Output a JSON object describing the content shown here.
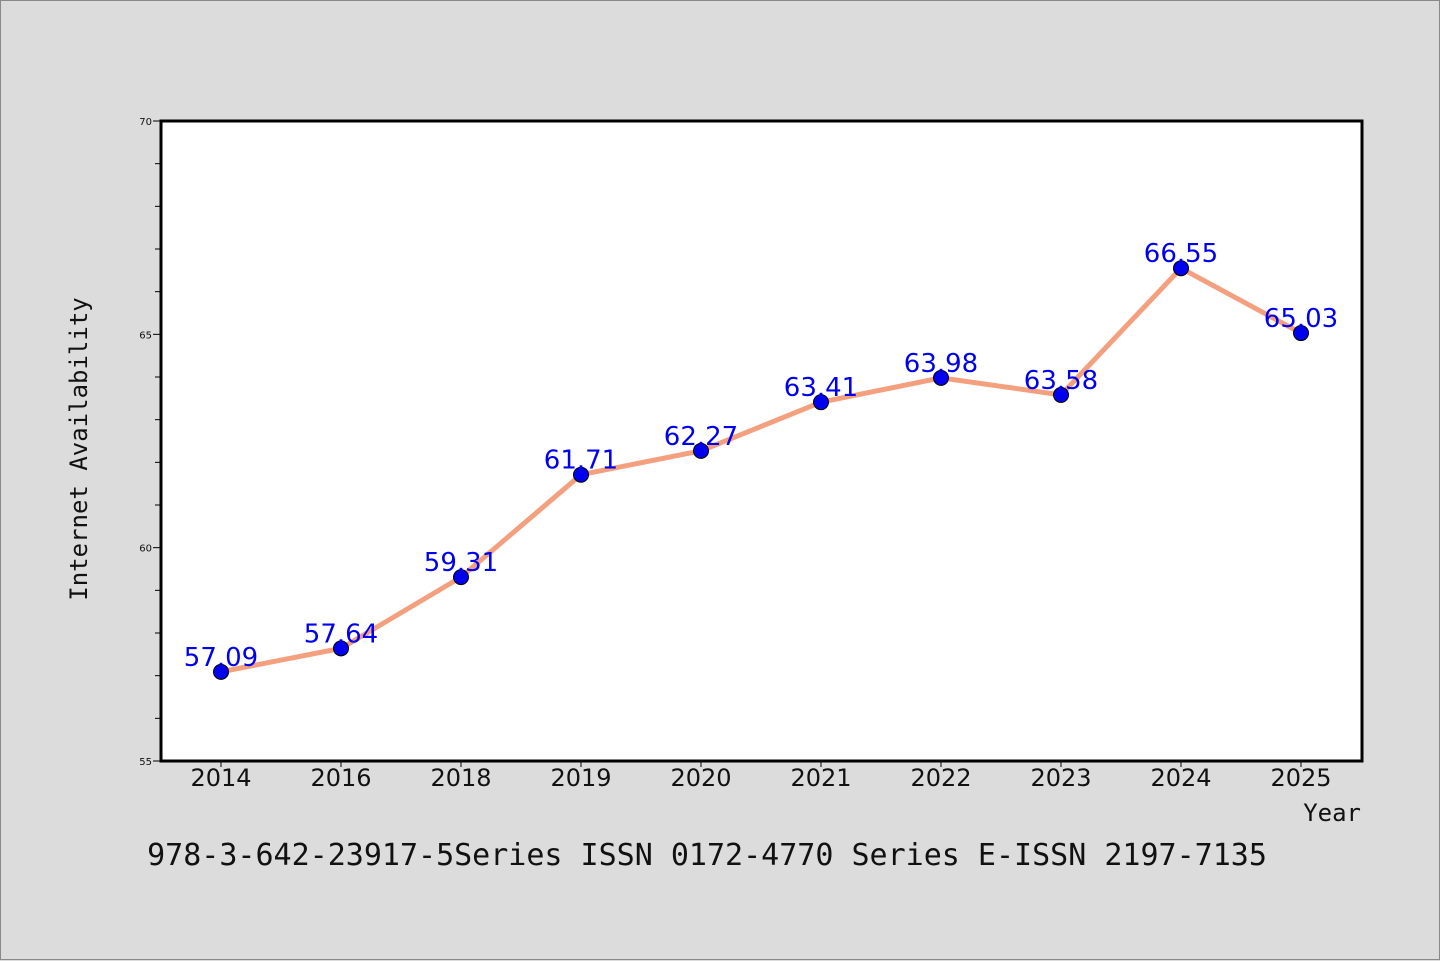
{
  "chart_data": {
    "type": "line",
    "categories": [
      "2014",
      "2016",
      "2018",
      "2019",
      "2020",
      "2021",
      "2022",
      "2023",
      "2024",
      "2025"
    ],
    "series": [
      {
        "values": [
          57.09,
          57.64,
          59.31,
          61.71,
          62.27,
          63.41,
          63.98,
          63.58,
          66.55,
          65.03
        ]
      }
    ],
    "data_labels": [
      "57.09",
      "57.64",
      "59.31",
      "61.71",
      "62.27",
      "63.41",
      "63.98",
      "63.58",
      "66.55",
      "65.03"
    ],
    "title": "",
    "xlabel": "Year",
    "ylabel": "Internet Availability",
    "ylim": [
      55,
      70
    ],
    "yticks": [
      55,
      60,
      65,
      70
    ],
    "ytick_labels": [
      "55",
      "60",
      "65",
      "70"
    ],
    "minor_ytick_step": 1,
    "grid": false,
    "legend": "none",
    "colors": {
      "line": "#f4a07f",
      "marker": "#0000ee",
      "data_label": "#0000ee",
      "background": "#dcdcdc",
      "plot_area": "#ffffff"
    }
  },
  "caption": "978-3-642-23917-5Series ISSN 0172-4770 Series E-ISSN 2197-7135"
}
